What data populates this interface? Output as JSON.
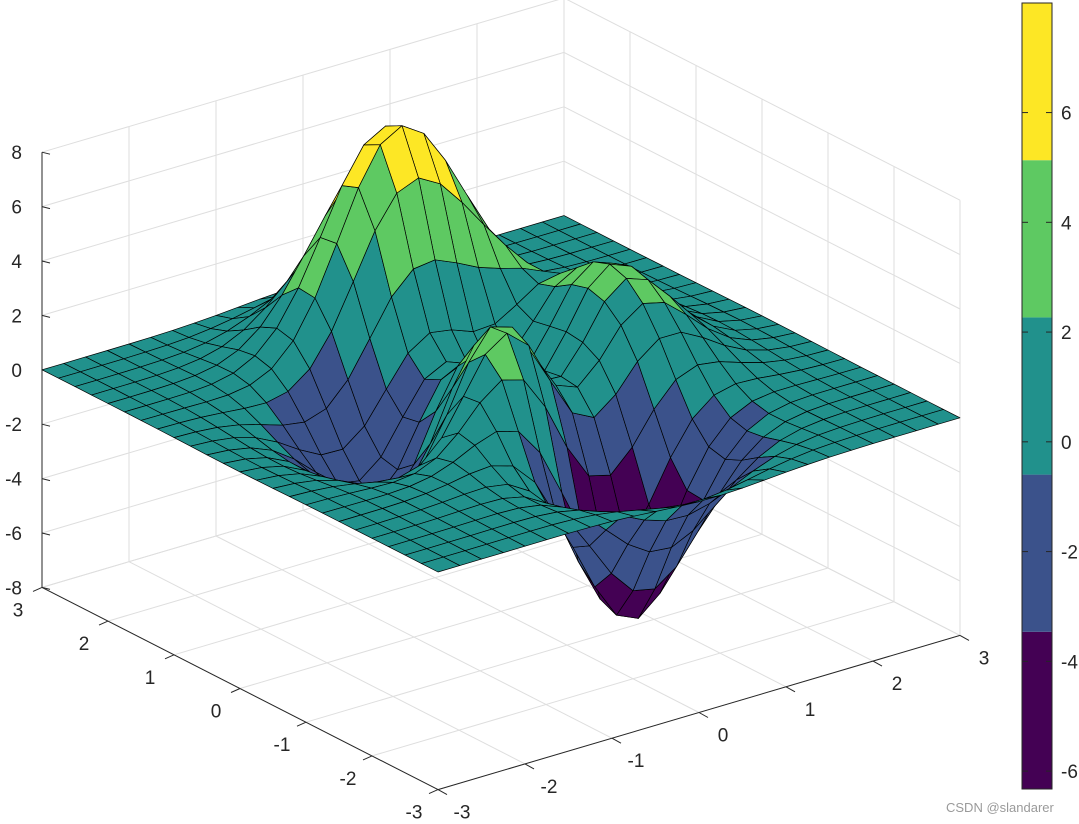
{
  "chart_data": {
    "type": "surface",
    "surface_function": "peaks",
    "x_range": [
      -3,
      3
    ],
    "y_range": [
      -3,
      3
    ],
    "grid_points": 25,
    "xlim": [
      -3,
      3
    ],
    "ylim": [
      -3,
      3
    ],
    "zlim": [
      -8,
      8
    ],
    "x_ticks": [
      "-3",
      "-2",
      "-1",
      "0",
      "1",
      "2",
      "3"
    ],
    "y_ticks": [
      "-3",
      "-2",
      "-1",
      "0",
      "1",
      "2",
      "3"
    ],
    "z_ticks": [
      "-8",
      "-6",
      "-4",
      "-2",
      "0",
      "2",
      "4",
      "6",
      "8"
    ],
    "grid": true,
    "view": {
      "azimuth": -37.5,
      "elevation": 30
    },
    "edge_color": "#000000",
    "colormap": [
      "#440154",
      "#3b528b",
      "#21918c",
      "#5ec962",
      "#fde725"
    ],
    "colorbar": {
      "position": "right",
      "ticks": [
        "-6",
        "-4",
        "-2",
        "0",
        "2",
        "4",
        "6"
      ]
    }
  },
  "watermark": "CSDN @slandarer"
}
